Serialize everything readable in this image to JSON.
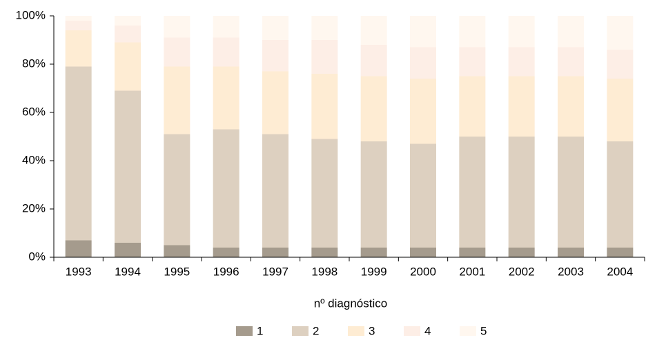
{
  "chart_data": {
    "type": "stacked-bar-100",
    "categories": [
      "1993",
      "1994",
      "1995",
      "1996",
      "1997",
      "1998",
      "1999",
      "2000",
      "2001",
      "2002",
      "2003",
      "2004"
    ],
    "series": [
      {
        "name": "1",
        "color": "#a59b8d",
        "values": [
          7,
          6,
          5,
          4,
          4,
          4,
          4,
          4,
          4,
          4,
          4,
          4
        ]
      },
      {
        "name": "2",
        "color": "#ddd0c0",
        "values": [
          72,
          63,
          46,
          49,
          47,
          45,
          44,
          43,
          46,
          46,
          46,
          44
        ]
      },
      {
        "name": "3",
        "color": "#feecd3",
        "values": [
          15,
          20,
          28,
          26,
          26,
          27,
          27,
          27,
          25,
          25,
          25,
          26
        ]
      },
      {
        "name": "4",
        "color": "#fdeee6",
        "values": [
          4,
          7,
          12,
          12,
          13,
          14,
          13,
          13,
          12,
          12,
          12,
          12
        ]
      },
      {
        "name": "5",
        "color": "#fff7ef",
        "values": [
          2,
          4,
          9,
          9,
          10,
          10,
          12,
          13,
          13,
          13,
          13,
          14
        ]
      }
    ],
    "legend_title": "nº diagnóstico",
    "ylim": [
      0,
      100
    ],
    "yticks": [
      {
        "value": 0,
        "label": "0%"
      },
      {
        "value": 20,
        "label": "20%"
      },
      {
        "value": 40,
        "label": "40%"
      },
      {
        "value": 60,
        "label": "60%"
      },
      {
        "value": 80,
        "label": "80%"
      },
      {
        "value": 100,
        "label": "100%"
      }
    ]
  }
}
